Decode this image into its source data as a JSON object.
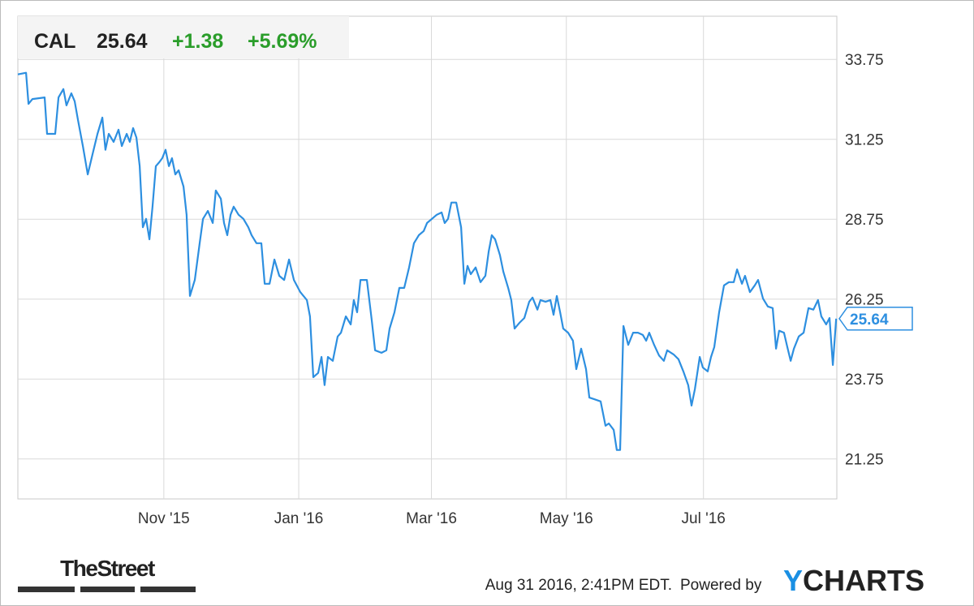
{
  "chart_data": {
    "type": "line",
    "ticker": "CAL",
    "last_price": "25.64",
    "change": "+1.38",
    "change_percent": "+5.69%",
    "color": "#2d8fe0",
    "up_color": "#2a9d2a",
    "x": [
      0,
      3.7,
      4.8,
      6.6,
      12.1,
      13.2,
      16.9,
      18.4,
      20.6,
      22.0,
      24.2,
      25.7,
      27.2,
      29.4,
      31.6,
      33.8,
      36.0,
      38.2,
      39.6,
      41.1,
      43.3,
      45.5,
      47.0,
      49.2,
      50.6,
      52.1,
      53.6,
      55.1,
      56.5,
      58.0,
      59.5,
      60.9,
      62.4,
      63.9,
      65.3,
      66.8,
      68.3,
      69.7,
      71.2,
      72.7,
      74.9,
      76.3,
      77.8,
      80.0,
      82.2,
      83.7,
      85.9,
      88.1,
      89.5,
      91.8,
      93.2,
      94.7,
      96.2,
      97.6,
      99.8,
      102.0,
      104.2,
      105.7,
      107.9,
      110.1,
      111.6,
      113.8,
      116.0,
      118.2,
      120.4,
      122.6,
      124.8,
      127.7,
      130.7,
      132.1,
      133.6,
      135.8,
      137.3,
      138.7,
      140.2,
      142.4,
      144.6,
      146.1,
      148.3,
      150.5,
      151.9,
      153.4,
      154.9,
      157.8,
      160.0,
      161.5,
      164.4,
      166.6,
      168.1,
      170.3,
      172.5,
      174.7,
      176.9,
      179.1,
      181.3,
      183.5,
      185.0,
      187.2,
      189.4,
      191.6,
      193.0,
      194.5,
      196.0,
      198.2,
      200.4,
      201.9,
      203.3,
      204.8,
      207.0,
      209.2,
      211.4,
      212.9,
      214.3,
      215.8,
      218.0,
      219.5,
      221.7,
      223.1,
      224.6,
      226.8,
      229.0,
      231.2,
      232.7,
      234.9,
      236.3,
      238.6,
      240.8,
      242.2,
      243.7,
      245.2,
      246.6,
      248.8,
      251.0,
      252.5,
      254.7,
      256.9,
      258.4,
      260.6,
      263.5,
      265.7,
      267.2,
      269.4,
      270.8,
      272.3,
      273.8,
      276.0,
      278.2,
      280.4,
      282.6,
      284.1,
      285.5,
      287.7,
      289.9,
      292.1,
      293.6,
      296.5,
      298.7,
      300.9,
      303.1,
      304.6,
      306.1,
      308.3,
      309.7,
      311.9,
      313.4,
      314.9,
      317.1,
      319.3,
      321.5,
      323.7,
      325.2,
      327.4,
      328.8,
      331.0,
      333.2,
      334.7,
      336.9,
      339.1,
      341.3,
      342.8,
      344.2,
      346.4,
      347.9,
      349.4,
      350.9,
      353.1,
      355.3,
      357.5,
      359.7,
      361.8,
      363.3,
      365.5,
      367.0,
      368.5,
      370.0
    ],
    "values": [
      33.28,
      33.33,
      32.36,
      32.51,
      32.56,
      31.42,
      31.42,
      32.56,
      32.82,
      32.31,
      32.69,
      32.44,
      31.85,
      31.04,
      30.15,
      30.79,
      31.42,
      31.93,
      30.92,
      31.42,
      31.17,
      31.55,
      31.04,
      31.42,
      31.17,
      31.6,
      31.3,
      30.41,
      28.5,
      28.76,
      28.12,
      29.14,
      30.41,
      30.53,
      30.66,
      30.92,
      30.41,
      30.66,
      30.15,
      30.28,
      29.77,
      28.89,
      26.35,
      26.85,
      28.0,
      28.76,
      29.01,
      28.63,
      29.65,
      29.39,
      28.63,
      28.25,
      28.89,
      29.14,
      28.89,
      28.76,
      28.5,
      28.25,
      28.0,
      28.0,
      26.73,
      26.73,
      27.49,
      26.98,
      26.85,
      27.49,
      26.85,
      26.47,
      26.22,
      25.71,
      23.81,
      23.94,
      24.44,
      23.56,
      24.44,
      24.32,
      25.08,
      25.2,
      25.71,
      25.46,
      26.22,
      25.84,
      26.85,
      26.85,
      25.59,
      24.65,
      24.57,
      24.65,
      25.33,
      25.84,
      26.6,
      26.6,
      27.24,
      28.0,
      28.25,
      28.38,
      28.63,
      28.76,
      28.89,
      28.96,
      28.63,
      28.76,
      29.27,
      29.27,
      28.5,
      26.73,
      27.29,
      27.03,
      27.24,
      26.78,
      26.98,
      27.74,
      28.25,
      28.12,
      27.62,
      27.11,
      26.6,
      26.22,
      25.33,
      25.51,
      25.66,
      26.17,
      26.3,
      25.92,
      26.22,
      26.17,
      26.22,
      25.76,
      26.35,
      25.84,
      25.33,
      25.2,
      24.95,
      24.06,
      24.7,
      24.06,
      23.17,
      23.12,
      23.05,
      22.29,
      22.36,
      22.16,
      21.53,
      21.53,
      25.41,
      24.82,
      25.2,
      25.2,
      25.13,
      24.95,
      25.2,
      24.82,
      24.49,
      24.32,
      24.65,
      24.52,
      24.37,
      23.99,
      23.56,
      22.92,
      23.43,
      24.44,
      24.11,
      23.99,
      24.44,
      24.75,
      25.84,
      26.68,
      26.78,
      26.78,
      27.18,
      26.73,
      26.98,
      26.47,
      26.68,
      26.85,
      26.27,
      26.02,
      25.97,
      24.7,
      25.26,
      25.2,
      24.75,
      24.32,
      24.7,
      25.08,
      25.2,
      25.97,
      25.92,
      26.22,
      25.71,
      25.46,
      25.66,
      24.19,
      25.64
    ],
    "xlim": [
      0,
      370.3
    ],
    "xticks": [
      {
        "value": 66,
        "label": "Nov '15"
      },
      {
        "value": 127,
        "label": "Jan '16"
      },
      {
        "value": 187,
        "label": "Mar '16"
      },
      {
        "value": 248,
        "label": "May '16"
      },
      {
        "value": 310,
        "label": "Jul '16"
      }
    ],
    "ylim": [
      20,
      35.1
    ],
    "yticks": [
      21.25,
      23.75,
      26.25,
      28.75,
      31.25,
      33.75
    ],
    "grid": true
  },
  "footer": {
    "source_logo": "TheStreet",
    "timestamp": "Aug 31 2016, 2:41PM EDT.",
    "powered_by": "Powered by",
    "brand_initial": "Y",
    "brand_rest": "CHARTS"
  }
}
